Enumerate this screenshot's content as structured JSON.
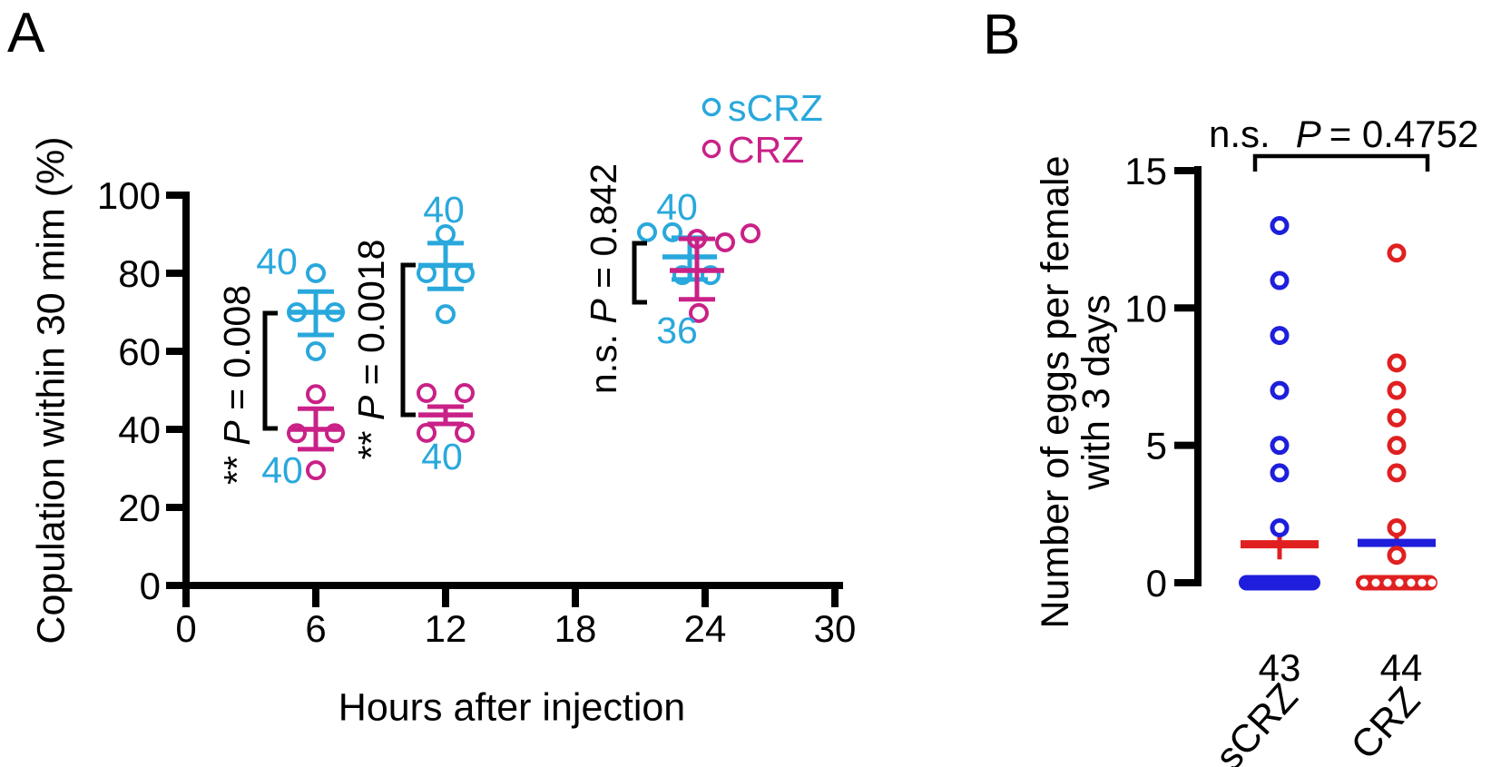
{
  "panel_labels": {
    "a": "A",
    "b": "B"
  },
  "colors": {
    "cyan": "#29A8DC",
    "magenta": "#C92187",
    "blue": "#1E1EDC",
    "red": "#E02020",
    "black": "#000000",
    "n_label_color": "#29A8DC"
  },
  "chart_data": [
    {
      "id": "A",
      "type": "scatter",
      "xlabel": "Hours after injection",
      "ylabel": "Copulation within 30 mim (%)",
      "xlim": [
        0,
        30
      ],
      "ylim": [
        0,
        100
      ],
      "xticks": [
        0,
        6,
        12,
        18,
        24,
        30
      ],
      "yticks": [
        100,
        80,
        60,
        40,
        20,
        0
      ],
      "grid": false,
      "legend_position": "top-right",
      "legend": [
        {
          "name": "sCRZ",
          "color": "#29A8DC"
        },
        {
          "name": "CRZ",
          "color": "#C92187"
        }
      ],
      "groups": [
        {
          "series": "sCRZ",
          "hour": 6,
          "n": 40,
          "color": "#29A8DC",
          "mean": 70,
          "sem_lo": 64.2,
          "sem_hi": 75.3,
          "points": [
            {
              "v": 80,
              "dx": 0
            },
            {
              "v": 70,
              "dx": -21
            },
            {
              "v": 70,
              "dx": 21
            },
            {
              "v": 60,
              "dx": 0
            }
          ]
        },
        {
          "series": "CRZ",
          "hour": 6,
          "n": 40,
          "color": "#C92187",
          "mean": 40,
          "sem_lo": 34.9,
          "sem_hi": 45.3,
          "points": [
            {
              "v": 49,
              "dx": 0
            },
            {
              "v": 39,
              "dx": -21
            },
            {
              "v": 39,
              "dx": 21
            },
            {
              "v": 29.5,
              "dx": 0
            }
          ]
        },
        {
          "series": "sCRZ",
          "hour": 12,
          "n": 40,
          "color": "#29A8DC",
          "mean": 82,
          "sem_lo": 76.0,
          "sem_hi": 87.7,
          "points": [
            {
              "v": 90,
              "dx": 0
            },
            {
              "v": 80,
              "dx": -21
            },
            {
              "v": 80,
              "dx": 21
            },
            {
              "v": 69.5,
              "dx": 0
            }
          ]
        },
        {
          "series": "CRZ",
          "hour": 12,
          "n": 40,
          "color": "#C92187",
          "mean": 43.7,
          "sem_lo": 41.4,
          "sem_hi": 45.8,
          "points": [
            {
              "v": 49.3,
              "dx": -21
            },
            {
              "v": 49.3,
              "dx": 21
            },
            {
              "v": 39.1,
              "dx": -21
            },
            {
              "v": 39.1,
              "dx": 21
            }
          ]
        },
        {
          "series": "sCRZ",
          "hour": 24,
          "n": 40,
          "color": "#29A8DC",
          "mean": 84.2,
          "sem_lo": 78.4,
          "sem_hi": 89.1,
          "points": [
            {
              "v": 90.5,
              "dx": -47
            },
            {
              "v": 90.5,
              "dx": -19
            },
            {
              "v": 79.5,
              "dx": -8
            },
            {
              "v": 79.5,
              "dx": 23
            }
          ]
        },
        {
          "series": "CRZ",
          "hour": 24,
          "n": 36,
          "color": "#C92187",
          "mean": 80.7,
          "sem_lo": 73.3,
          "sem_hi": 88.8,
          "points": [
            {
              "v": 88.8,
              "dx": 0
            },
            {
              "v": 87.9,
              "dx": 31
            },
            {
              "v": 90.2,
              "dx": 59
            },
            {
              "v": 69.8,
              "dx": 2
            }
          ]
        }
      ],
      "stats": [
        {
          "sig": "**",
          "p_label": "P",
          "p_value": "= 0.008",
          "compares": "sCRZ vs CRZ at 6 h"
        },
        {
          "sig": "**",
          "p_label": "P",
          "p_value": "= 0.0018",
          "compares": "sCRZ vs CRZ at 12 h"
        },
        {
          "sig": "n.s.",
          "p_label": "P",
          "p_value": "= 0.842",
          "compares": "sCRZ vs CRZ at 24 h"
        }
      ]
    },
    {
      "id": "B",
      "type": "scatter",
      "ylabel_lines": [
        "Number of eggs per female",
        "with 3 days"
      ],
      "ylim": [
        0,
        15
      ],
      "yticks": [
        15,
        10,
        5,
        0
      ],
      "grid": false,
      "stat": {
        "sig": "n.s.",
        "p_label": "P",
        "p_value": "= 0.4752"
      },
      "columns": [
        {
          "name": "sCRZ",
          "n": 43,
          "point_color": "#1E1EDC",
          "mean_color": "#E02020",
          "whisker_color": "#E02020",
          "points": [
            13,
            11,
            9,
            7,
            5,
            4,
            2
          ],
          "zeros": 36,
          "zero_style": "solid",
          "mean": 1.4,
          "sem_lo": 0.85,
          "sem_hi": 1.85
        },
        {
          "name": "CRZ",
          "n": 44,
          "point_color": "#E02020",
          "mean_color": "#1E1EDC",
          "whisker_color": "#E02020",
          "points": [
            12,
            8,
            7,
            6,
            5,
            4,
            2,
            1
          ],
          "zeros": 36,
          "zero_style": "rings",
          "mean": 1.45,
          "sem_lo": 0.9,
          "sem_hi": 2.0
        }
      ]
    }
  ]
}
